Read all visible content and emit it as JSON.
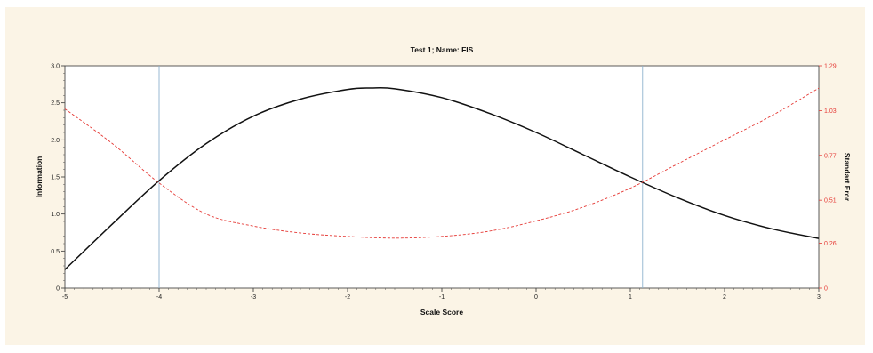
{
  "chart_data": {
    "type": "line",
    "title": "Test 1; Name: FIS",
    "xlabel": "Scale Score",
    "ylabel": "Information",
    "y2label": "Standart Eror",
    "xlim": [
      -5,
      3
    ],
    "ylim": [
      0,
      3.0
    ],
    "y2lim": [
      0,
      1.29
    ],
    "x_ticks": [
      "-5",
      "-4",
      "-3",
      "-2",
      "-1",
      "0",
      "1",
      "2",
      "3"
    ],
    "y_ticks": [
      "0",
      "0.5",
      "1.0",
      "1.5",
      "2.0",
      "2.5",
      "3.0"
    ],
    "y2_ticks": [
      "0",
      "0.26",
      "0.51",
      "0.77",
      "1.03",
      "1.29"
    ],
    "grid": false,
    "vlines": [
      -4.0,
      1.13
    ],
    "colors": {
      "information": "#111111",
      "standard_error": "#e53935",
      "vlines": "#8fb3cf",
      "background": "#fbf4e6",
      "plot_area": "#ffffff"
    },
    "series": [
      {
        "axis": "left",
        "style": "solid",
        "x": [
          -5.0,
          -4.5,
          -4.0,
          -3.5,
          -3.0,
          -2.5,
          -2.0,
          -1.75,
          -1.5,
          -1.0,
          -0.5,
          0.0,
          0.5,
          1.0,
          1.5,
          2.0,
          2.5,
          3.0
        ],
        "values": [
          0.25,
          0.86,
          1.45,
          1.95,
          2.32,
          2.55,
          2.68,
          2.7,
          2.69,
          2.57,
          2.36,
          2.1,
          1.8,
          1.5,
          1.22,
          0.98,
          0.8,
          0.67
        ]
      },
      {
        "axis": "right",
        "style": "dashed",
        "x": [
          -5.0,
          -4.5,
          -4.0,
          -3.5,
          -3.0,
          -2.5,
          -2.0,
          -1.5,
          -1.0,
          -0.5,
          0.0,
          0.5,
          1.0,
          1.5,
          2.0,
          2.5,
          3.0
        ],
        "values": [
          1.04,
          0.84,
          0.61,
          0.43,
          0.36,
          0.32,
          0.3,
          0.29,
          0.3,
          0.33,
          0.39,
          0.47,
          0.58,
          0.72,
          0.86,
          1.0,
          1.16
        ]
      }
    ]
  }
}
